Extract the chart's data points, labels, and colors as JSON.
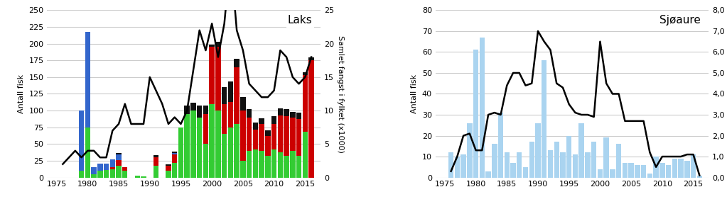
{
  "laks": {
    "title": "Laks",
    "years": [
      1976,
      1977,
      1978,
      1979,
      1980,
      1981,
      1982,
      1983,
      1984,
      1985,
      1986,
      1987,
      1988,
      1989,
      1990,
      1991,
      1992,
      1993,
      1994,
      1995,
      1996,
      1997,
      1998,
      1999,
      2000,
      2001,
      2002,
      2003,
      2004,
      2005,
      2006,
      2007,
      2008,
      2009,
      2010,
      2011,
      2012,
      2013,
      2014,
      2015,
      2016
    ],
    "green": [
      0,
      0,
      0,
      10,
      75,
      5,
      10,
      11,
      12,
      18,
      10,
      0,
      3,
      2,
      0,
      18,
      0,
      10,
      22,
      75,
      95,
      100,
      90,
      50,
      110,
      100,
      65,
      75,
      80,
      25,
      40,
      42,
      40,
      32,
      42,
      38,
      32,
      40,
      32,
      68,
      0
    ],
    "red": [
      0,
      0,
      0,
      0,
      0,
      0,
      0,
      0,
      3,
      8,
      5,
      0,
      0,
      0,
      0,
      12,
      0,
      8,
      12,
      0,
      0,
      0,
      0,
      45,
      85,
      95,
      45,
      38,
      85,
      75,
      50,
      30,
      40,
      30,
      38,
      55,
      60,
      50,
      55,
      85,
      175
    ],
    "blue": [
      0,
      0,
      0,
      90,
      143,
      10,
      11,
      10,
      12,
      8,
      0,
      0,
      0,
      0,
      0,
      0,
      0,
      0,
      3,
      0,
      0,
      0,
      0,
      0,
      0,
      0,
      0,
      0,
      0,
      0,
      0,
      0,
      0,
      0,
      0,
      0,
      0,
      0,
      0,
      0,
      0
    ],
    "black": [
      0,
      0,
      0,
      0,
      0,
      0,
      0,
      0,
      0,
      3,
      0,
      0,
      0,
      0,
      0,
      3,
      0,
      2,
      2,
      0,
      12,
      12,
      18,
      12,
      4,
      8,
      25,
      30,
      12,
      20,
      12,
      10,
      8,
      8,
      12,
      10,
      10,
      8,
      10,
      4,
      4
    ],
    "line": [
      2,
      3,
      4,
      3,
      4,
      4,
      3,
      3,
      7,
      8,
      11,
      8,
      8,
      8,
      15,
      13,
      11,
      8,
      9,
      8,
      10,
      16,
      22,
      19,
      23,
      18,
      23,
      33,
      22,
      19,
      14,
      13,
      12,
      12,
      13,
      19,
      18,
      15,
      14,
      15,
      18
    ],
    "ylabel_left": "Antall fisk",
    "ylabel_right": "Samlet fangst i fylket (x1000)",
    "ylim_left": [
      0,
      250
    ],
    "ylim_right": [
      0,
      25
    ],
    "yticks_left": [
      0,
      25,
      50,
      75,
      100,
      125,
      150,
      175,
      200,
      225,
      250
    ],
    "yticks_right": [
      0,
      5,
      10,
      15,
      20,
      25
    ]
  },
  "sjoaure": {
    "title": "Sjøaure",
    "years": [
      1976,
      1977,
      1978,
      1979,
      1980,
      1981,
      1982,
      1983,
      1984,
      1985,
      1986,
      1987,
      1988,
      1989,
      1990,
      1991,
      1992,
      1993,
      1994,
      1995,
      1996,
      1997,
      1998,
      1999,
      2000,
      2001,
      2002,
      2003,
      2004,
      2005,
      2006,
      2007,
      2008,
      2009,
      2010,
      2011,
      2012,
      2013,
      2014,
      2015,
      2016
    ],
    "bars": [
      12,
      10,
      11,
      26,
      61,
      67,
      3,
      16,
      31,
      12,
      7,
      12,
      5,
      17,
      26,
      56,
      13,
      17,
      12,
      20,
      11,
      26,
      12,
      17,
      4,
      19,
      4,
      16,
      7,
      7,
      6,
      6,
      2,
      10,
      7,
      6,
      9,
      9,
      8,
      11,
      1
    ],
    "line": [
      0.3,
      1.0,
      2.0,
      2.1,
      1.3,
      1.3,
      3.0,
      3.1,
      3.0,
      4.4,
      5.0,
      5.0,
      4.4,
      4.5,
      7.0,
      6.5,
      6.1,
      4.5,
      4.3,
      3.5,
      3.1,
      3.0,
      3.0,
      2.9,
      6.5,
      4.5,
      4.0,
      4.0,
      2.7,
      2.7,
      2.7,
      2.7,
      1.2,
      0.5,
      1.0,
      1.0,
      1.0,
      1.0,
      1.1,
      1.1,
      0.1
    ],
    "bar_color": "#aad4f0",
    "ylabel_left": "Antall fisk",
    "ylabel_right": "Samlet fangst i fylket (x1000)",
    "ylim_left": [
      0,
      80
    ],
    "ylim_right": [
      0,
      8.0
    ],
    "yticks_left": [
      0,
      10,
      20,
      30,
      40,
      50,
      60,
      70,
      80
    ],
    "yticks_right": [
      0.0,
      1.0,
      2.0,
      3.0,
      4.0,
      5.0,
      6.0,
      7.0,
      8.0
    ],
    "ytick_labels_right": [
      "0,0",
      "1,0",
      "2,0",
      "3,0",
      "4,0",
      "5,0",
      "6,0",
      "7,0",
      "8,0"
    ]
  },
  "laks_ytick_labels_right": [
    "0",
    "5",
    "10",
    "15",
    "20",
    "25"
  ],
  "xlabel_ticks": [
    1975,
    1980,
    1985,
    1990,
    1995,
    2000,
    2005,
    2010,
    2015
  ],
  "line_color": "#000000",
  "line_width": 1.8,
  "background_color": "#ffffff",
  "plot_bg_color": "#ffffff",
  "grid_color": "#cccccc",
  "title_fontsize": 11,
  "label_fontsize": 8,
  "tick_fontsize": 8
}
